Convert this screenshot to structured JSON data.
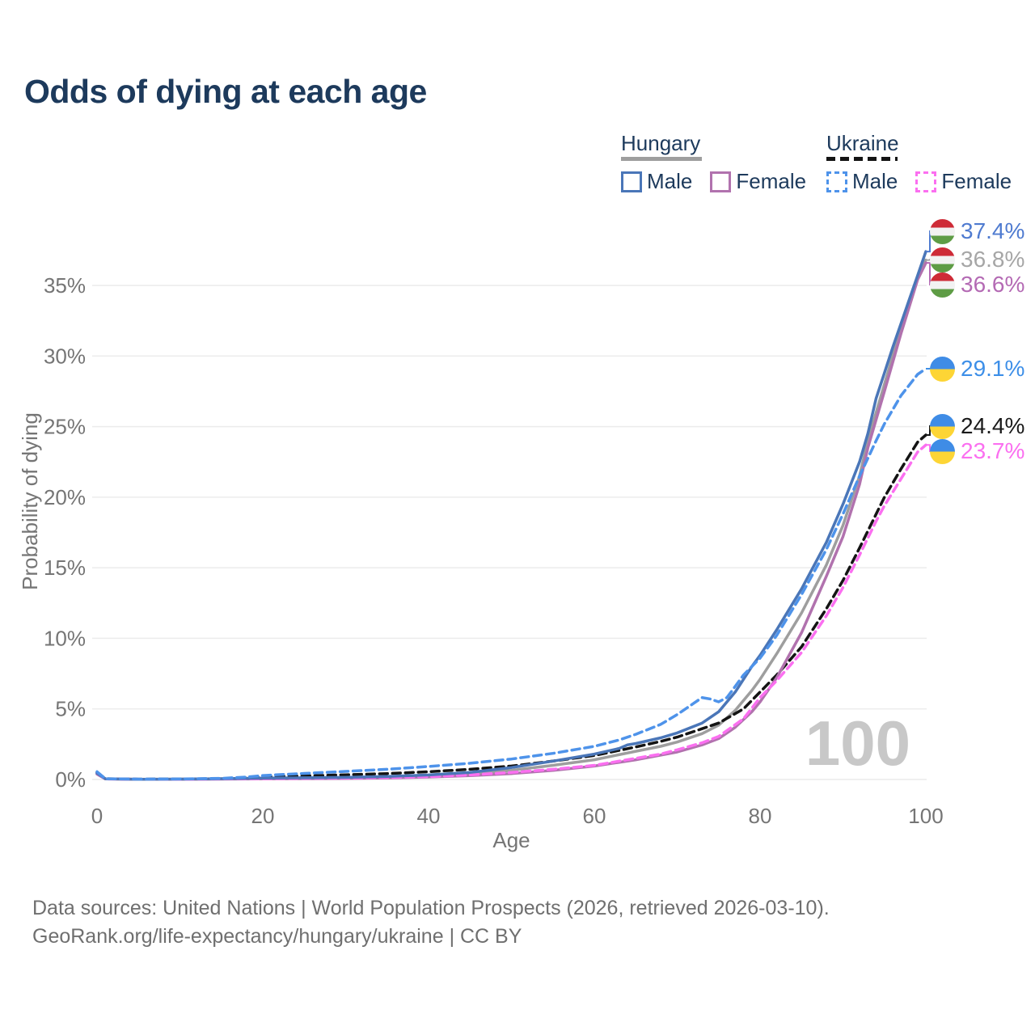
{
  "title": "Odds of dying at each age",
  "legend": {
    "groups": [
      {
        "country": "Hungary",
        "line_style": "solid",
        "underline_color": "#9e9e9e",
        "items": [
          {
            "label": "Male",
            "color": "#4a76b8",
            "style": "solid"
          },
          {
            "label": "Female",
            "color": "#b172ae",
            "style": "solid"
          }
        ]
      },
      {
        "country": "Ukraine",
        "line_style": "dashed",
        "underline_color": "#141414",
        "items": [
          {
            "label": "Male",
            "color": "#4e93ea",
            "style": "dashed"
          },
          {
            "label": "Female",
            "color": "#fb6ff0",
            "style": "dashed"
          }
        ]
      }
    ]
  },
  "watermark": "100",
  "end_labels": [
    {
      "series": "hungary_male",
      "text": "37.4%",
      "color": "#4f7bd0",
      "flag": "hungary"
    },
    {
      "series": "hungary",
      "text": "36.8%",
      "color": "#a6a6a6",
      "flag": "hungary"
    },
    {
      "series": "hungary_female",
      "text": "36.6%",
      "color": "#b46ab4",
      "flag": "hungary"
    },
    {
      "series": "ukraine_male",
      "text": "29.1%",
      "color": "#3d8fe8",
      "flag": "ukraine"
    },
    {
      "series": "ukraine",
      "text": "24.4%",
      "color": "#1a1a1a",
      "flag": "ukraine"
    },
    {
      "series": "ukraine_female",
      "text": "23.7%",
      "color": "#fb6ff0",
      "flag": "ukraine"
    }
  ],
  "footer": {
    "line1": "Data sources: United Nations | World Population Prospects (2026, retrieved 2026-03-10).",
    "line2": "GeoRank.org/life-expectancy/hungary/ukraine | CC BY"
  },
  "chart_data": {
    "type": "line",
    "title": "Odds of dying at each age",
    "xlabel": "Age",
    "ylabel": "Probability of dying",
    "xlim": [
      0,
      100
    ],
    "ylim": [
      0,
      40
    ],
    "x_ticks": [
      0,
      20,
      40,
      60,
      80,
      100
    ],
    "y_ticks": [
      0,
      5,
      10,
      15,
      20,
      25,
      30,
      35
    ],
    "y_tick_suffix": "%",
    "grid": "horizontal",
    "legend_position": "top-right",
    "series": [
      {
        "id": "hungary",
        "name": "Hungary",
        "country": "Hungary",
        "style": "solid",
        "color": "#9e9e9e",
        "end_value": 36.8,
        "points": [
          [
            0,
            0.4
          ],
          [
            1,
            0.045
          ],
          [
            5,
            0.02
          ],
          [
            10,
            0.025
          ],
          [
            15,
            0.05
          ],
          [
            20,
            0.08
          ],
          [
            25,
            0.1
          ],
          [
            30,
            0.12
          ],
          [
            35,
            0.17
          ],
          [
            40,
            0.25
          ],
          [
            45,
            0.4
          ],
          [
            50,
            0.65
          ],
          [
            55,
            1.0
          ],
          [
            60,
            1.4
          ],
          [
            65,
            2.0
          ],
          [
            68,
            2.35
          ],
          [
            70,
            2.65
          ],
          [
            73,
            3.25
          ],
          [
            75,
            3.85
          ],
          [
            77,
            4.9
          ],
          [
            79,
            6.3
          ],
          [
            80,
            7.1
          ],
          [
            82,
            8.9
          ],
          [
            85,
            11.8
          ],
          [
            88,
            15.2
          ],
          [
            90,
            18.0
          ],
          [
            92,
            21.5
          ],
          [
            93,
            24.0
          ],
          [
            95,
            28.0
          ],
          [
            97,
            32.0
          ],
          [
            99,
            35.6
          ],
          [
            100,
            36.8
          ]
        ]
      },
      {
        "id": "ukraine",
        "name": "Ukraine",
        "country": "Ukraine",
        "style": "dashed",
        "color": "#141414",
        "end_value": 24.4,
        "points": [
          [
            0,
            0.5
          ],
          [
            1,
            0.05
          ],
          [
            5,
            0.025
          ],
          [
            10,
            0.03
          ],
          [
            15,
            0.06
          ],
          [
            20,
            0.17
          ],
          [
            25,
            0.25
          ],
          [
            30,
            0.33
          ],
          [
            35,
            0.42
          ],
          [
            40,
            0.55
          ],
          [
            45,
            0.72
          ],
          [
            50,
            0.95
          ],
          [
            55,
            1.3
          ],
          [
            60,
            1.7
          ],
          [
            65,
            2.3
          ],
          [
            68,
            2.7
          ],
          [
            70,
            3.0
          ],
          [
            73,
            3.6
          ],
          [
            75,
            4.0
          ],
          [
            78,
            5.0
          ],
          [
            80,
            6.2
          ],
          [
            82,
            7.4
          ],
          [
            85,
            9.4
          ],
          [
            88,
            12.1
          ],
          [
            90,
            14.1
          ],
          [
            92,
            16.4
          ],
          [
            94,
            18.8
          ],
          [
            95,
            20.0
          ],
          [
            97,
            22.0
          ],
          [
            99,
            23.9
          ],
          [
            100,
            24.4
          ]
        ]
      },
      {
        "id": "hungary_female",
        "name": "Hungary Female",
        "country": "Hungary",
        "style": "solid",
        "color": "#b172ae",
        "end_value": 36.6,
        "points": [
          [
            0,
            0.38
          ],
          [
            1,
            0.04
          ],
          [
            5,
            0.015
          ],
          [
            10,
            0.02
          ],
          [
            15,
            0.03
          ],
          [
            20,
            0.045
          ],
          [
            25,
            0.055
          ],
          [
            30,
            0.07
          ],
          [
            35,
            0.11
          ],
          [
            40,
            0.17
          ],
          [
            45,
            0.27
          ],
          [
            50,
            0.42
          ],
          [
            55,
            0.65
          ],
          [
            60,
            0.95
          ],
          [
            65,
            1.4
          ],
          [
            70,
            1.95
          ],
          [
            73,
            2.45
          ],
          [
            75,
            2.9
          ],
          [
            77,
            3.7
          ],
          [
            79,
            4.8
          ],
          [
            80,
            5.5
          ],
          [
            82,
            7.2
          ],
          [
            85,
            10.4
          ],
          [
            88,
            14.4
          ],
          [
            90,
            17.2
          ],
          [
            92,
            20.9
          ],
          [
            93,
            23.5
          ],
          [
            95,
            27.5
          ],
          [
            97,
            31.6
          ],
          [
            99,
            35.4
          ],
          [
            100,
            36.6
          ]
        ]
      },
      {
        "id": "ukraine_female",
        "name": "Ukraine Female",
        "country": "Ukraine",
        "style": "dashed",
        "color": "#fb6ff0",
        "end_value": 23.7,
        "points": [
          [
            0,
            0.45
          ],
          [
            1,
            0.04
          ],
          [
            5,
            0.02
          ],
          [
            10,
            0.02
          ],
          [
            15,
            0.04
          ],
          [
            20,
            0.06
          ],
          [
            25,
            0.08
          ],
          [
            30,
            0.1
          ],
          [
            35,
            0.14
          ],
          [
            40,
            0.2
          ],
          [
            45,
            0.32
          ],
          [
            50,
            0.5
          ],
          [
            55,
            0.72
          ],
          [
            60,
            1.0
          ],
          [
            65,
            1.5
          ],
          [
            68,
            1.8
          ],
          [
            70,
            2.1
          ],
          [
            73,
            2.6
          ],
          [
            75,
            3.05
          ],
          [
            78,
            4.3
          ],
          [
            80,
            5.8
          ],
          [
            82,
            7.0
          ],
          [
            85,
            9.0
          ],
          [
            88,
            11.6
          ],
          [
            90,
            13.6
          ],
          [
            92,
            15.9
          ],
          [
            94,
            18.3
          ],
          [
            95,
            19.4
          ],
          [
            97,
            21.3
          ],
          [
            99,
            23.2
          ],
          [
            100,
            23.7
          ]
        ]
      },
      {
        "id": "hungary_male",
        "name": "Hungary Male",
        "country": "Hungary",
        "style": "solid",
        "color": "#4a76b8",
        "end_value": 37.4,
        "points": [
          [
            0,
            0.45
          ],
          [
            1,
            0.05
          ],
          [
            5,
            0.02
          ],
          [
            10,
            0.03
          ],
          [
            15,
            0.06
          ],
          [
            20,
            0.1
          ],
          [
            25,
            0.12
          ],
          [
            30,
            0.15
          ],
          [
            35,
            0.21
          ],
          [
            40,
            0.32
          ],
          [
            45,
            0.5
          ],
          [
            50,
            0.85
          ],
          [
            55,
            1.3
          ],
          [
            60,
            1.8
          ],
          [
            63,
            2.2
          ],
          [
            64,
            2.45
          ],
          [
            65,
            2.55
          ],
          [
            68,
            2.95
          ],
          [
            70,
            3.3
          ],
          [
            73,
            4.0
          ],
          [
            75,
            4.8
          ],
          [
            77,
            6.2
          ],
          [
            79,
            8.0
          ],
          [
            80,
            8.8
          ],
          [
            82,
            10.6
          ],
          [
            85,
            13.5
          ],
          [
            88,
            16.8
          ],
          [
            90,
            19.5
          ],
          [
            92,
            22.5
          ],
          [
            93,
            24.5
          ],
          [
            94,
            27.0
          ],
          [
            95,
            28.8
          ],
          [
            96,
            30.6
          ],
          [
            97,
            32.3
          ],
          [
            98,
            34.0
          ],
          [
            99,
            35.7
          ],
          [
            100,
            37.4
          ]
        ]
      },
      {
        "id": "ukraine_male",
        "name": "Ukraine Male",
        "country": "Ukraine",
        "style": "dashed",
        "color": "#4e93ea",
        "end_value": 29.1,
        "points": [
          [
            0,
            0.55
          ],
          [
            1,
            0.05
          ],
          [
            5,
            0.03
          ],
          [
            10,
            0.04
          ],
          [
            15,
            0.08
          ],
          [
            18,
            0.17
          ],
          [
            20,
            0.28
          ],
          [
            25,
            0.43
          ],
          [
            30,
            0.57
          ],
          [
            35,
            0.72
          ],
          [
            40,
            0.92
          ],
          [
            45,
            1.15
          ],
          [
            50,
            1.45
          ],
          [
            55,
            1.85
          ],
          [
            60,
            2.35
          ],
          [
            63,
            2.8
          ],
          [
            65,
            3.2
          ],
          [
            68,
            3.9
          ],
          [
            70,
            4.6
          ],
          [
            72,
            5.4
          ],
          [
            73,
            5.8
          ],
          [
            74,
            5.7
          ],
          [
            75,
            5.5
          ],
          [
            76,
            5.8
          ],
          [
            77,
            6.6
          ],
          [
            78,
            7.4
          ],
          [
            80,
            8.6
          ],
          [
            82,
            10.2
          ],
          [
            85,
            13.1
          ],
          [
            88,
            16.3
          ],
          [
            90,
            18.8
          ],
          [
            92,
            21.5
          ],
          [
            94,
            24.0
          ],
          [
            95,
            25.2
          ],
          [
            97,
            27.2
          ],
          [
            99,
            28.7
          ],
          [
            100,
            29.1
          ]
        ]
      }
    ]
  }
}
